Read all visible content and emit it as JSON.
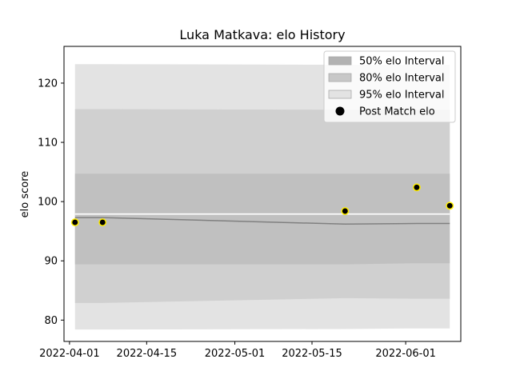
{
  "chart_data": {
    "type": "line",
    "title": "Luka Matkava: elo History",
    "xlabel": "",
    "ylabel": "elo score",
    "x_axis_type": "date",
    "xlim": [
      "2022-03-31",
      "2022-06-11"
    ],
    "ylim": [
      76.4,
      126.2
    ],
    "x_ticks": [
      "2022-04-01",
      "2022-04-15",
      "2022-05-01",
      "2022-05-15",
      "2022-06-01"
    ],
    "y_ticks": [
      80,
      90,
      100,
      110,
      120
    ],
    "grid": false,
    "legend_position": "top-right",
    "legend": [
      {
        "label": "50% elo Interval",
        "kind": "band",
        "color": "#b2b2b2"
      },
      {
        "label": "80% elo Interval",
        "kind": "band",
        "color": "#c8c8c8"
      },
      {
        "label": "95% elo Interval",
        "kind": "band",
        "color": "#e3e3e3"
      },
      {
        "label": "Post Match elo",
        "kind": "marker",
        "color": "#000000"
      }
    ],
    "x": [
      "2022-04-02",
      "2022-04-07",
      "2022-05-21",
      "2022-06-03",
      "2022-06-09"
    ],
    "bands": [
      {
        "name": "95% elo Interval",
        "color": "#e3e3e3",
        "lower": [
          78.4,
          78.4,
          78.5,
          78.6,
          78.6
        ],
        "upper": [
          123.2,
          123.2,
          123.1,
          123.1,
          123.1
        ]
      },
      {
        "name": "80% elo Interval",
        "color": "#d0d0d0",
        "lower": [
          82.9,
          82.9,
          83.7,
          83.6,
          83.6
        ],
        "upper": [
          115.6,
          115.6,
          115.5,
          115.5,
          115.5
        ]
      },
      {
        "name": "50% elo Interval",
        "color": "#c0c0c0",
        "lower": [
          89.4,
          89.4,
          89.4,
          89.6,
          89.6
        ],
        "upper": [
          104.7,
          104.7,
          104.7,
          104.7,
          104.7
        ]
      }
    ],
    "series": [
      {
        "name": "",
        "kind": "line",
        "color": "#ffffff",
        "values": [
          97.9,
          97.9,
          97.9,
          97.9,
          97.9
        ]
      },
      {
        "name": "",
        "kind": "line",
        "color": "#808080",
        "values": [
          97.3,
          97.3,
          96.2,
          96.3,
          96.3
        ]
      }
    ],
    "points": {
      "name": "Post Match elo",
      "marker_color": "#000000",
      "edge_color": "#ffee00",
      "x": [
        "2022-04-02",
        "2022-04-07",
        "2022-05-21",
        "2022-06-03",
        "2022-06-09"
      ],
      "y": [
        96.5,
        96.5,
        98.4,
        102.4,
        99.3
      ]
    }
  }
}
